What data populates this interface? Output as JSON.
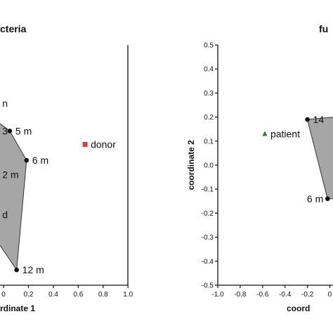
{
  "chart_data": [
    {
      "type": "scatter",
      "title": "cteria",
      "xlabel": "rdinate 1",
      "ylabel": "",
      "xlim": [
        -0.05,
        1.0
      ],
      "ylim": [
        -0.5,
        0.5
      ],
      "x_ticks": [
        "0",
        "0.2",
        "0.4",
        "0.6",
        "0.8",
        "1.0"
      ],
      "x_tick_values": [
        0,
        0.2,
        0.4,
        0.6,
        0.8,
        1.0
      ],
      "hull": [
        [
          -0.1,
          0.2
        ],
        [
          0.05,
          0.142
        ],
        [
          0.185,
          0.02
        ],
        [
          0.105,
          -0.436
        ],
        [
          -0.1,
          -0.28
        ]
      ],
      "points": [
        {
          "x": 0.05,
          "y": 0.142,
          "label": "5 m",
          "marker": "circle",
          "color": "#111111"
        },
        {
          "x": 0.185,
          "y": 0.02,
          "label": "6 m",
          "marker": "circle",
          "color": "#111111"
        },
        {
          "x": 0.105,
          "y": -0.436,
          "label": "12 m",
          "marker": "circle",
          "color": "#111111"
        },
        {
          "x": 0.655,
          "y": 0.086,
          "label": "donor",
          "marker": "square",
          "color": "#e53935"
        }
      ],
      "fragments": [
        {
          "x": -0.01,
          "y": 0.257,
          "text": "n"
        },
        {
          "x": -0.01,
          "y": 0.142,
          "text": "3"
        },
        {
          "x": -0.01,
          "y": -0.04,
          "text": "2 m"
        },
        {
          "x": -0.01,
          "y": -0.206,
          "text": "d"
        }
      ]
    },
    {
      "type": "scatter",
      "title": "fu",
      "xlabel": "coord",
      "ylabel": "coordinate 2",
      "xlim": [
        -1.0,
        0.05
      ],
      "ylim": [
        -0.5,
        0.5
      ],
      "x_ticks": [
        "-1.0",
        "-0.8",
        "-0.6",
        "-0.4",
        "-0.2",
        "0"
      ],
      "x_tick_values": [
        -1.0,
        -0.8,
        -0.6,
        -0.4,
        -0.2,
        0
      ],
      "y_ticks": [
        "0.5",
        "0.4",
        "0.3",
        "0.2",
        "0.1",
        "0.0",
        "-0.1",
        "-0.2",
        "-0.3",
        "-0.4",
        "-0.5"
      ],
      "y_tick_values": [
        0.5,
        0.4,
        0.3,
        0.2,
        0.1,
        0.0,
        -0.1,
        -0.2,
        -0.3,
        -0.4,
        -0.5
      ],
      "hull": [
        [
          -0.2,
          0.19
        ],
        [
          0.05,
          0.2
        ],
        [
          0.05,
          -0.14
        ],
        [
          -0.02,
          -0.14
        ]
      ],
      "points": [
        {
          "x": -0.2,
          "y": 0.19,
          "label": "14",
          "marker": "circle",
          "color": "#111111"
        },
        {
          "x": -0.02,
          "y": -0.14,
          "label": "6 m",
          "marker": "circle",
          "color": "#111111"
        },
        {
          "x": -0.58,
          "y": 0.13,
          "label": "patient",
          "marker": "triangle",
          "color": "#2e7d32"
        }
      ],
      "fragments": []
    }
  ]
}
